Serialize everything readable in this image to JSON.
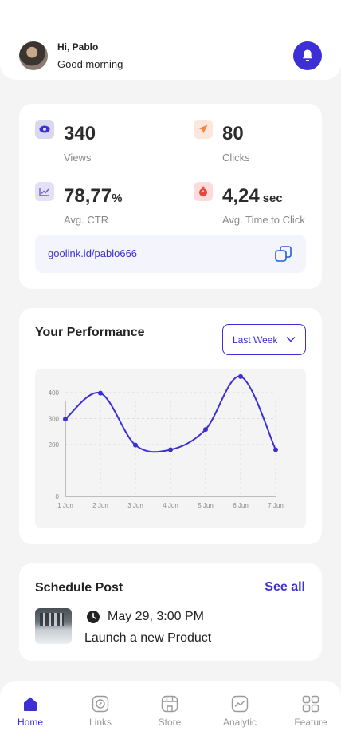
{
  "header": {
    "greeting": "Hi, Pablo",
    "subtitle": "Good morning"
  },
  "stats": [
    {
      "value": "340",
      "unit": "",
      "label": "Views",
      "icon": "eye-icon",
      "color": "#3d2fd6"
    },
    {
      "value": "80",
      "unit": "",
      "label": "Clicks",
      "icon": "cursor-icon",
      "color": "#f0864a"
    },
    {
      "value": "78,77",
      "unit": "%",
      "label": "Avg. CTR",
      "icon": "trend-chart-icon",
      "color": "#6b5fd0"
    },
    {
      "value": "4,24",
      "unit": "sec",
      "label": "Avg. Time to Click",
      "icon": "timer-icon",
      "color": "#e8453c"
    }
  ],
  "link": {
    "url": "goolink.id/pablo666"
  },
  "performance": {
    "title": "Your Performance",
    "range": "Last Week"
  },
  "chart_data": {
    "type": "line",
    "categories": [
      "1 Jun",
      "2 Jun",
      "3 Jun",
      "4 Jun",
      "5 Jun",
      "6 Jun",
      "7 Jun"
    ],
    "values": [
      298,
      398,
      198,
      180,
      258,
      462,
      180
    ],
    "yticks": [
      0,
      200,
      300,
      400
    ],
    "ylim": [
      0,
      480
    ],
    "grid": true,
    "color": "#3d2fd6"
  },
  "schedule": {
    "title": "Schedule Post",
    "see_all": "See all",
    "date": "May 29, 3:00 PM",
    "description": "Launch a new Product"
  },
  "nav": [
    {
      "label": "Home",
      "icon": "home-icon",
      "active": true
    },
    {
      "label": "Links",
      "icon": "link-icon",
      "active": false
    },
    {
      "label": "Store",
      "icon": "store-icon",
      "active": false
    },
    {
      "label": "Analytic",
      "icon": "analytic-icon",
      "active": false
    },
    {
      "label": "Feature",
      "icon": "grid-icon",
      "active": false
    }
  ],
  "colors": {
    "accent": "#3d2fd6",
    "background": "#f4f4f4"
  }
}
